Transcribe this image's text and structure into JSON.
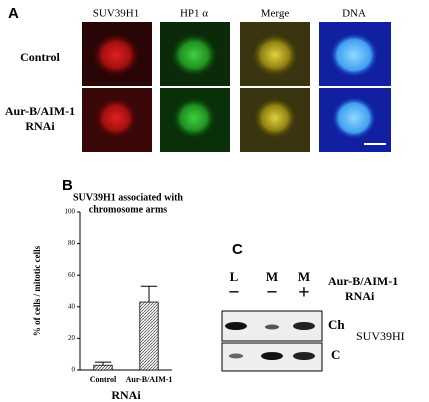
{
  "panel_a": {
    "label": "A",
    "columns": [
      "SUV39H1",
      "HP1 α",
      "Merge",
      "DNA"
    ],
    "rows": [
      [
        "Control"
      ],
      [
        "Aur-B/AIM-1",
        "RNAi"
      ]
    ]
  },
  "panel_b": {
    "label": "B"
  },
  "chart_data": {
    "type": "bar",
    "title": [
      "SUV39H1 associated with",
      "chromosome arms"
    ],
    "y_label": "% of cells / mitotic cells",
    "x_label": "RNAi",
    "categories": [
      "Control",
      "Aur-B/AIM-1"
    ],
    "values": [
      3,
      43
    ],
    "errors": [
      2,
      10
    ],
    "ylim": [
      0,
      100
    ],
    "yticks": [
      0,
      20,
      40,
      60,
      80,
      100
    ]
  },
  "panel_c": {
    "label": "C",
    "lanes": [
      "L",
      "M",
      "M"
    ],
    "treatment_label": [
      "Aur-B/AIM-1",
      "RNAi"
    ],
    "treatment": [
      "−",
      "−",
      "+"
    ],
    "rows": [
      "Ch",
      "C"
    ],
    "protein": "SUV39HI"
  }
}
